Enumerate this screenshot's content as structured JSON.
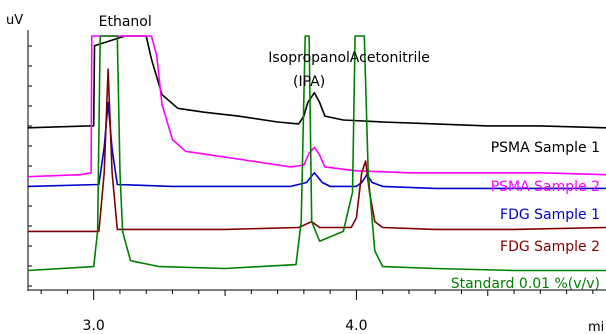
{
  "chart_data": {
    "type": "line",
    "title": "",
    "ylabel": "uV",
    "xlabel": "mi",
    "xlim": [
      2.75,
      4.95
    ],
    "x_ticks": [
      3.0,
      4.0
    ],
    "x_tick_labels": [
      "3.0",
      "4.0"
    ],
    "grid": false,
    "peak_labels": [
      {
        "text": "Ethanol",
        "x": 3.12
      },
      {
        "text": "Isopropanol",
        "x": 3.82
      },
      {
        "text": "(IPA)",
        "x": 3.82
      },
      {
        "text": "Acetonitrile",
        "x": 4.07
      }
    ],
    "series": [
      {
        "name": "PSMA Sample 1",
        "color": "#000000",
        "points": [
          [
            2.75,
            8.3
          ],
          [
            2.98,
            8.4
          ],
          [
            3.0,
            8.4
          ],
          [
            3.003,
            12.5
          ],
          [
            3.12,
            13.0
          ],
          [
            3.2,
            13.0
          ],
          [
            3.22,
            11.8
          ],
          [
            3.26,
            10.0
          ],
          [
            3.32,
            9.3
          ],
          [
            3.42,
            9.1
          ],
          [
            3.55,
            8.9
          ],
          [
            3.7,
            8.6
          ],
          [
            3.78,
            8.5
          ],
          [
            3.8,
            8.9
          ],
          [
            3.815,
            9.6
          ],
          [
            3.84,
            10.1
          ],
          [
            3.86,
            9.6
          ],
          [
            3.88,
            8.9
          ],
          [
            3.95,
            8.7
          ],
          [
            4.1,
            8.6
          ],
          [
            4.3,
            8.5
          ],
          [
            4.5,
            8.4
          ],
          [
            4.7,
            8.4
          ],
          [
            4.95,
            8.3
          ]
        ]
      },
      {
        "name": "PSMA Sample 2",
        "color": "#ff00ff",
        "points": [
          [
            2.75,
            5.8
          ],
          [
            2.95,
            5.9
          ],
          [
            2.99,
            6.0
          ],
          [
            2.993,
            13.0
          ],
          [
            3.22,
            13.0
          ],
          [
            3.24,
            12.0
          ],
          [
            3.26,
            9.5
          ],
          [
            3.3,
            7.7
          ],
          [
            3.35,
            7.1
          ],
          [
            3.45,
            6.9
          ],
          [
            3.6,
            6.6
          ],
          [
            3.75,
            6.3
          ],
          [
            3.8,
            6.4
          ],
          [
            3.82,
            7.0
          ],
          [
            3.84,
            7.3
          ],
          [
            3.86,
            6.9
          ],
          [
            3.88,
            6.3
          ],
          [
            4.0,
            6.1
          ],
          [
            4.2,
            6.0
          ],
          [
            4.5,
            6.0
          ],
          [
            4.7,
            6.0
          ],
          [
            4.95,
            5.9
          ]
        ]
      },
      {
        "name": "FDG Sample 1",
        "color": "#0000cc",
        "points": [
          [
            2.75,
            5.3
          ],
          [
            3.02,
            5.4
          ],
          [
            3.04,
            7.3
          ],
          [
            3.055,
            9.6
          ],
          [
            3.07,
            7.2
          ],
          [
            3.09,
            5.4
          ],
          [
            3.3,
            5.3
          ],
          [
            3.5,
            5.3
          ],
          [
            3.75,
            5.3
          ],
          [
            3.81,
            5.5
          ],
          [
            3.84,
            6.0
          ],
          [
            3.87,
            5.5
          ],
          [
            3.9,
            5.3
          ],
          [
            4.0,
            5.3
          ],
          [
            4.02,
            5.5
          ],
          [
            4.04,
            5.9
          ],
          [
            4.06,
            5.5
          ],
          [
            4.1,
            5.3
          ],
          [
            4.3,
            5.2
          ],
          [
            4.6,
            5.2
          ],
          [
            4.95,
            5.2
          ]
        ]
      },
      {
        "name": "FDG Sample 2",
        "color": "#800000",
        "points": [
          [
            2.75,
            3.0
          ],
          [
            3.02,
            3.0
          ],
          [
            3.04,
            6.0
          ],
          [
            3.055,
            11.3
          ],
          [
            3.07,
            6.0
          ],
          [
            3.09,
            3.1
          ],
          [
            3.3,
            3.1
          ],
          [
            3.5,
            3.1
          ],
          [
            3.78,
            3.2
          ],
          [
            3.83,
            3.5
          ],
          [
            3.86,
            3.2
          ],
          [
            3.98,
            3.2
          ],
          [
            4.0,
            3.7
          ],
          [
            4.02,
            6.0
          ],
          [
            4.035,
            6.6
          ],
          [
            4.05,
            5.0
          ],
          [
            4.07,
            3.5
          ],
          [
            4.1,
            3.2
          ],
          [
            4.3,
            3.1
          ],
          [
            4.6,
            3.1
          ],
          [
            4.95,
            3.2
          ]
        ]
      },
      {
        "name": "Standard 0.01 %(v/v)",
        "color": "#008000",
        "points": [
          [
            2.75,
            1.0
          ],
          [
            3.0,
            1.2
          ],
          [
            3.015,
            3.0
          ],
          [
            3.025,
            13.0
          ],
          [
            3.09,
            13.0
          ],
          [
            3.1,
            6.0
          ],
          [
            3.11,
            3.0
          ],
          [
            3.14,
            1.5
          ],
          [
            3.25,
            1.2
          ],
          [
            3.5,
            1.1
          ],
          [
            3.77,
            1.3
          ],
          [
            3.79,
            3.5
          ],
          [
            3.805,
            13.0
          ],
          [
            3.82,
            13.0
          ],
          [
            3.83,
            3.5
          ],
          [
            3.86,
            2.5
          ],
          [
            3.95,
            3.0
          ],
          [
            3.985,
            5.0
          ],
          [
            3.995,
            13.0
          ],
          [
            4.03,
            13.0
          ],
          [
            4.045,
            6.0
          ],
          [
            4.07,
            2.0
          ],
          [
            4.1,
            1.2
          ],
          [
            4.3,
            1.1
          ],
          [
            4.6,
            1.0
          ],
          [
            4.95,
            1.0
          ]
        ]
      }
    ]
  }
}
